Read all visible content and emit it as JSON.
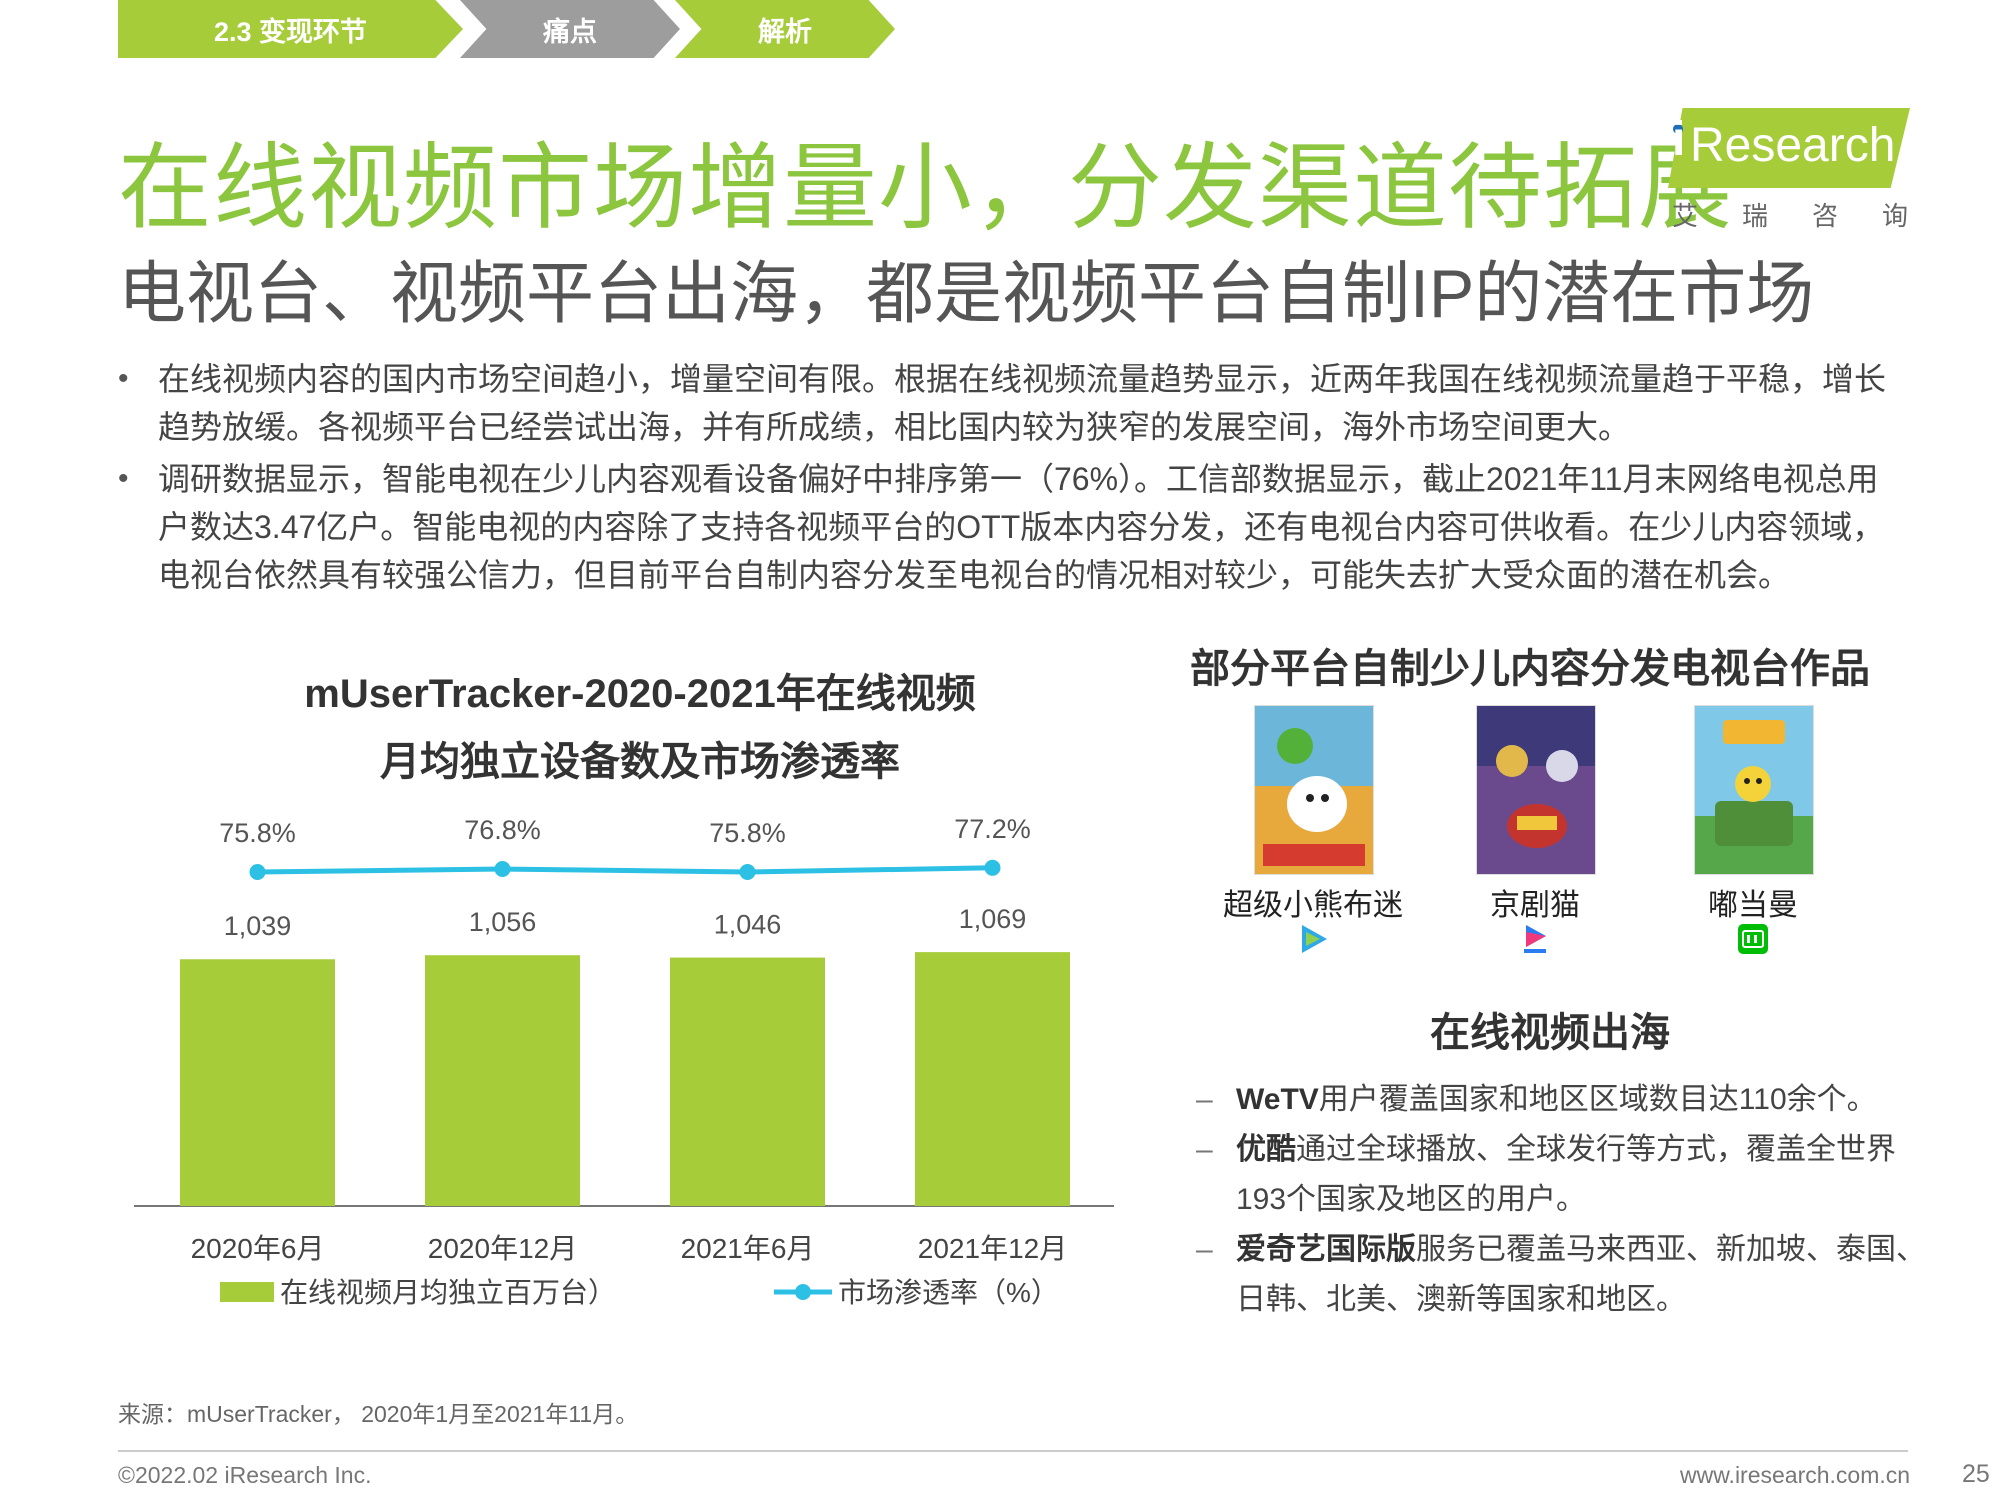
{
  "breadcrumb": {
    "section": "2.3  变现环节",
    "step1": "痛点",
    "step2": "解析"
  },
  "title": "在线视频市场增量小，分发渠道待拓展",
  "subtitle": "电视台、视频平台出海，都是视频平台自制IP的潜在市场",
  "logo": {
    "mark": "i",
    "name": "Research",
    "cn": "艾瑞咨询"
  },
  "bullets": [
    "在线视频内容的国内市场空间趋小，增量空间有限。根据在线视频流量趋势显示，近两年我国在线视频流量趋于平稳，增长趋势放缓。各视频平台已经尝试出海，并有所成绩，相比国内较为狭窄的发展空间，海外市场空间更大。",
    "调研数据显示，智能电视在少儿内容观看设备偏好中排序第一（76%）。工信部数据显示，截止2021年11月末网络电视总用户数达3.47亿户。智能电视的内容除了支持各视频平台的OTT版本内容分发，还有电视台内容可供收看。在少儿内容领域，电视台依然具有较强公信力，但目前平台自制内容分发至电视台的情况相对较少，可能失去扩大受众面的潜在机会。"
  ],
  "chart_title_line1": "mUserTracker-2020-2021年在线视频",
  "chart_title_line2": "月均独立设备数及市场渗透率",
  "chart_data": {
    "type": "bar",
    "categories": [
      "2020年6月",
      "2020年12月",
      "2021年6月",
      "2021年12月"
    ],
    "series": [
      {
        "name": "在线视频月均独立百万台）",
        "kind": "bar",
        "color": "#a6cc3a",
        "values": [
          1039,
          1056,
          1046,
          1069
        ],
        "labels": [
          "1,039",
          "1,056",
          "1,046",
          "1,069"
        ]
      },
      {
        "name": "市场渗透率（%）",
        "kind": "line",
        "color": "#2bc0e4",
        "values": [
          75.8,
          76.8,
          75.8,
          77.2
        ],
        "labels": [
          "75.8%",
          "76.8%",
          "75.8%",
          "77.2%"
        ]
      }
    ],
    "legend_position": "bottom",
    "grid": false
  },
  "right_title": "部分平台自制少儿内容分发电视台作品",
  "works": [
    {
      "name": "超级小熊布迷",
      "platform_icon": "tencent-video-icon",
      "poster_color": "#e7a93b"
    },
    {
      "name": "京剧猫",
      "platform_icon": "youku-icon",
      "poster_color": "#6a4a8c"
    },
    {
      "name": "嘟当曼",
      "platform_icon": "iqiyi-icon",
      "poster_color": "#56a64a"
    }
  ],
  "overseas": {
    "title": "在线视频出海",
    "items": [
      {
        "bold": "WeTV",
        "text": "用户覆盖国家和地区区域数目达110余个。"
      },
      {
        "bold": "优酷",
        "text": "通过全球播放、全球发行等方式，覆盖全世界193个国家及地区的用户。"
      },
      {
        "bold": "爱奇艺国际版",
        "text": "服务已覆盖马来西亚、新加坡、泰国、日韩、北美、澳新等国家和地区。"
      }
    ]
  },
  "source": "来源：mUserTracker， 2020年1月至2021年11月。",
  "footer": {
    "copyright": "©2022.02 iResearch Inc.",
    "website": "www.iresearch.com.cn",
    "page": "25"
  }
}
